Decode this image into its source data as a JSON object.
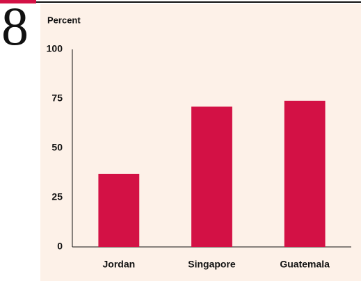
{
  "figure_number": "8",
  "chart_data": {
    "type": "bar",
    "y_label": "Percent",
    "categories": [
      "Jordan",
      "Singapore",
      "Guatemala"
    ],
    "values": [
      37,
      71,
      74
    ],
    "color": "#d31145",
    "ylim": [
      0,
      100
    ],
    "yticks": [
      0,
      25,
      50,
      75,
      100
    ],
    "grid": false
  }
}
